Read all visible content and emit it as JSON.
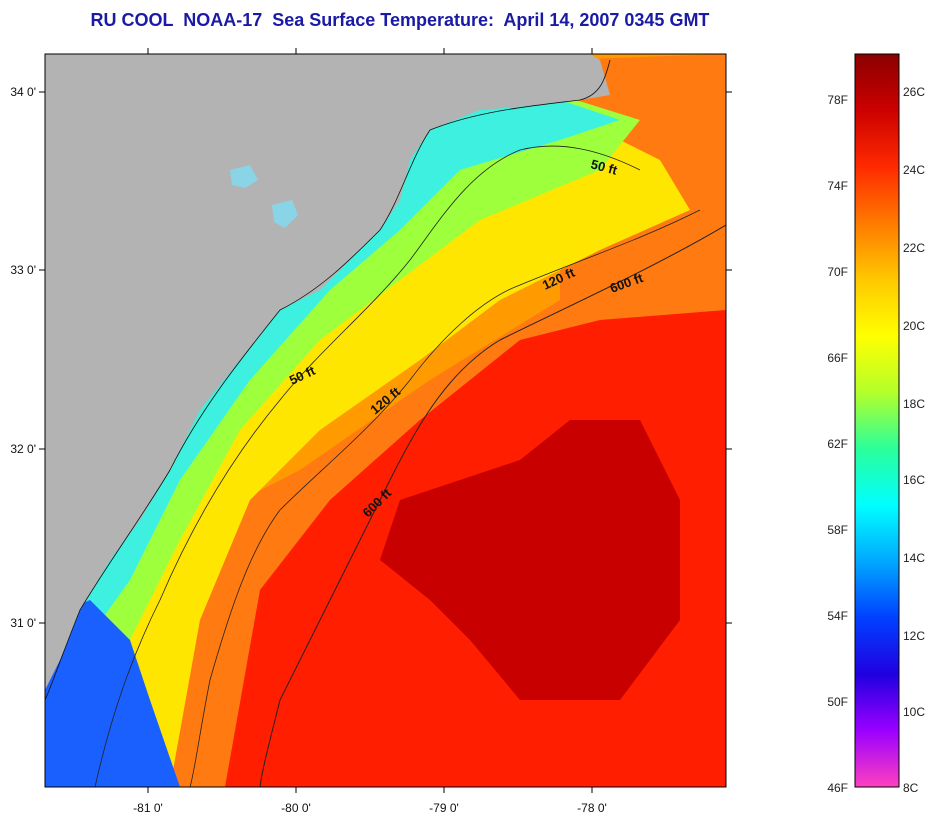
{
  "title": "RU COOL  NOAA-17  Sea Surface Temperature:  April 14, 2007 0345 GMT",
  "lat_labels": [
    "34 0'",
    "33 0'",
    "32 0'",
    "31 0'"
  ],
  "lon_labels": [
    "-81 0'",
    "-80 0'",
    "-79 0'",
    "-78 0'"
  ],
  "contour_labels": [
    "50 ft",
    "120 ft",
    "600 ft",
    "50 ft",
    "120 ft",
    "600 ft"
  ],
  "colorbar": {
    "fahrenheit": [
      "78F",
      "74F",
      "70F",
      "66F",
      "62F",
      "58F",
      "54F",
      "50F",
      "46F"
    ],
    "celsius": [
      "26C",
      "24C",
      "22C",
      "20C",
      "18C",
      "16C",
      "14C",
      "12C",
      "10C",
      "8C"
    ],
    "colors": [
      "#8b0000",
      "#cc0000",
      "#ff2a00",
      "#ff7a00",
      "#ffc800",
      "#ffff00",
      "#b4ff2a",
      "#2aff9a",
      "#00ffff",
      "#00a8ff",
      "#0040ff",
      "#2000e0",
      "#9a00ff",
      "#ff40c0"
    ]
  },
  "land_color": "#b3b3b3"
}
